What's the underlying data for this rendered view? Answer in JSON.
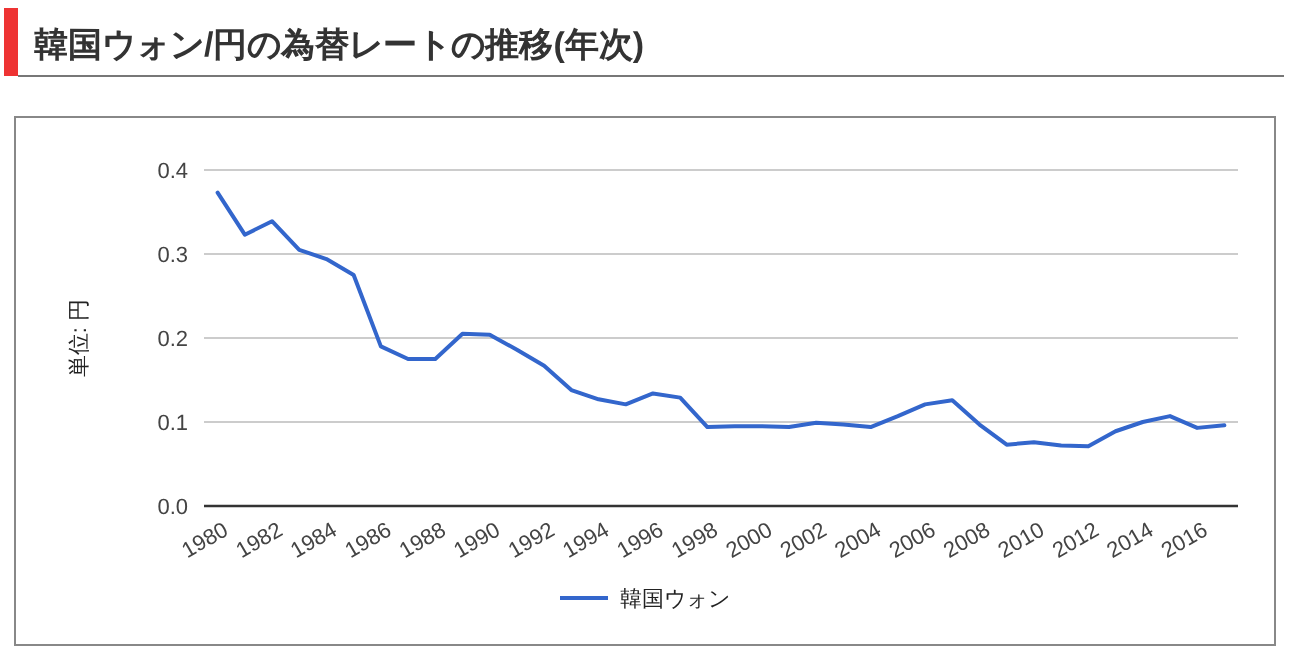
{
  "chart_data": {
    "type": "line",
    "title": "韓国ウォン/円の為替レートの推移(年次)",
    "ylabel": "単位: 円",
    "x": [
      1980,
      1981,
      1982,
      1983,
      1984,
      1985,
      1986,
      1987,
      1988,
      1989,
      1990,
      1991,
      1992,
      1993,
      1994,
      1995,
      1996,
      1997,
      1998,
      1999,
      2000,
      2001,
      2002,
      2003,
      2004,
      2005,
      2006,
      2007,
      2008,
      2009,
      2010,
      2011,
      2012,
      2013,
      2014,
      2015,
      2016,
      2017
    ],
    "series": [
      {
        "name": "韓国ウォン",
        "color": "#3366cc",
        "values": [
          0.373,
          0.323,
          0.339,
          0.305,
          0.294,
          0.275,
          0.19,
          0.175,
          0.175,
          0.205,
          0.204,
          0.186,
          0.167,
          0.138,
          0.127,
          0.121,
          0.134,
          0.129,
          0.094,
          0.095,
          0.095,
          0.094,
          0.099,
          0.097,
          0.094,
          0.107,
          0.121,
          0.126,
          0.097,
          0.073,
          0.076,
          0.072,
          0.071,
          0.089,
          0.1,
          0.107,
          0.093,
          0.096
        ]
      }
    ],
    "xlim": [
      1979.5,
      2017.5
    ],
    "xticks": [
      1980,
      1982,
      1984,
      1986,
      1988,
      1990,
      1992,
      1994,
      1996,
      1998,
      2000,
      2002,
      2004,
      2006,
      2008,
      2010,
      2012,
      2014,
      2016
    ],
    "ylim": [
      0,
      0.4
    ],
    "yticks": [
      {
        "value": 0,
        "label": "0.0"
      },
      0.1,
      0.2,
      0.3,
      0.4
    ],
    "grid": "y",
    "legend": "bottom",
    "marker": "none",
    "line_style": "solid"
  }
}
